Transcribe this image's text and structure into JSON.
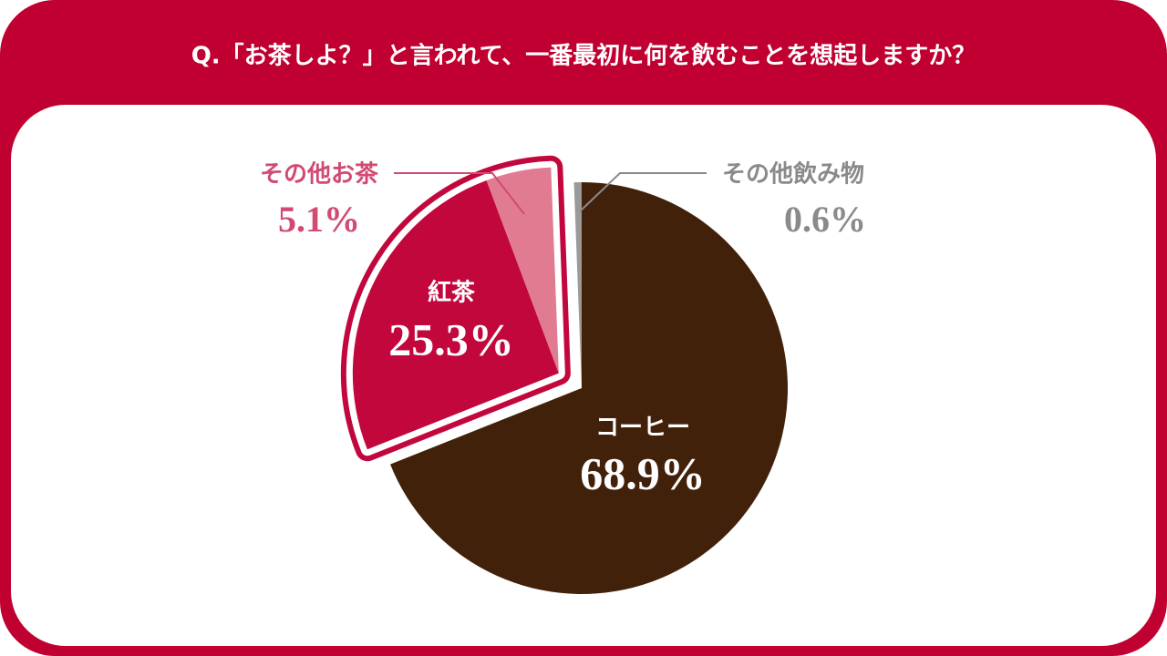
{
  "chart_data": {
    "type": "pie",
    "title": "Q.「お茶しよ？」と言われて、一番最初に何を飲むことを想起しますか？",
    "categories": [
      "コーヒー",
      "紅茶",
      "その他お茶",
      "その他飲み物"
    ],
    "values": [
      68.9,
      25.3,
      5.1,
      0.6
    ],
    "value_labels": [
      "68.9%",
      "25.3%",
      "5.1%",
      "0.6%"
    ],
    "colors": [
      "#42210b",
      "#c2073d",
      "#e07b92",
      "#9a9a9a"
    ]
  }
}
